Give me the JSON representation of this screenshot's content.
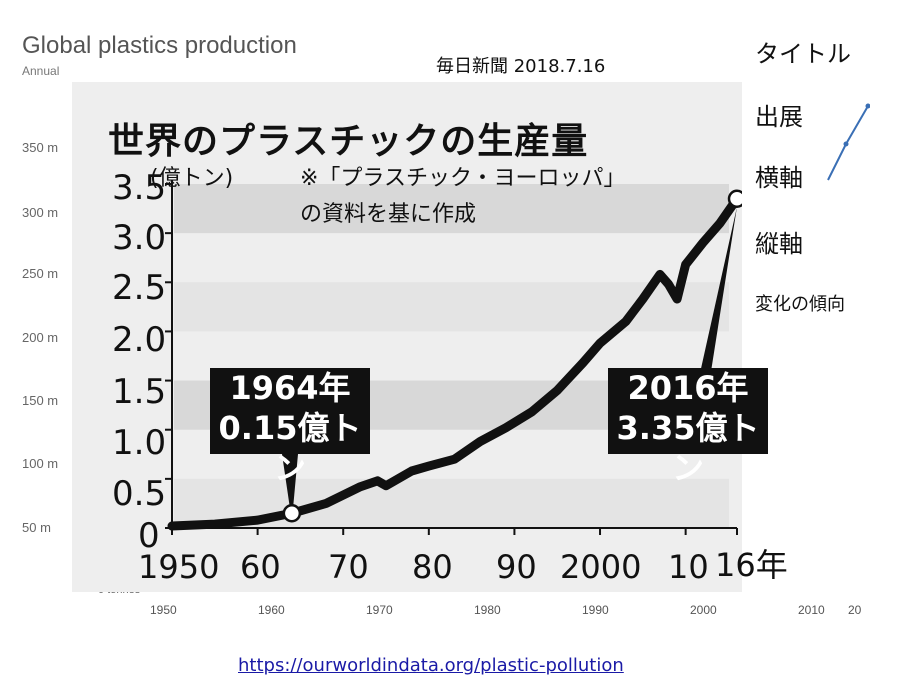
{
  "background_chart": {
    "title": "Global plastics production",
    "subtitle": "Annual",
    "y_ticks": [
      "350 m",
      "300 m",
      "250 m",
      "200 m",
      "150 m",
      "100 m",
      "50 m",
      "0 tonnes"
    ],
    "x_ticks": [
      "1950",
      "1960",
      "1970",
      "1980",
      "1990",
      "2000",
      "2010",
      "20"
    ]
  },
  "newspaper_label": "毎日新聞 2018.7.16",
  "notes": {
    "title_item": "タイトル",
    "source_item": "出展",
    "x_axis_item": "横軸",
    "y_axis_item": "縦軸",
    "trend_item": "変化の傾向"
  },
  "clipping": {
    "title": "世界のプラスチックの生産量",
    "unit": "(億トン)",
    "source_line1": "※「プラスチック・ヨーロッパ」",
    "source_line2": "の資料を基に作成",
    "y_ticks": [
      "3.5",
      "3.0",
      "2.5",
      "2.0",
      "1.5",
      "1.0",
      "0.5",
      "0"
    ],
    "x_ticks": [
      "1950",
      "60",
      "70",
      "80",
      "90",
      "2000",
      "10",
      "16年"
    ],
    "callout_1964_line1": "1964年",
    "callout_1964_line2": "0.15億トン",
    "callout_2016_line1": "2016年",
    "callout_2016_line2": "3.35億トン"
  },
  "chart_data": {
    "type": "line",
    "title": "世界のプラスチックの生産量",
    "ylabel": "(億トン)",
    "xlabel": "",
    "ylim": [
      0,
      3.5
    ],
    "xlim": [
      1950,
      2016
    ],
    "x": [
      1950,
      1955,
      1960,
      1964,
      1968,
      1972,
      1974,
      1975,
      1978,
      1980,
      1983,
      1986,
      1989,
      1992,
      1995,
      1998,
      2000,
      2003,
      2005,
      2007,
      2008,
      2009,
      2010,
      2012,
      2014,
      2016
    ],
    "series": [
      {
        "values": [
          0.02,
          0.04,
          0.08,
          0.15,
          0.25,
          0.42,
          0.48,
          0.43,
          0.58,
          0.63,
          0.7,
          0.88,
          1.02,
          1.18,
          1.4,
          1.68,
          1.88,
          2.1,
          2.33,
          2.58,
          2.48,
          2.33,
          2.68,
          2.9,
          3.1,
          3.35
        ]
      }
    ]
  },
  "link": "https://ourworldindata.org/plastic-pollution"
}
